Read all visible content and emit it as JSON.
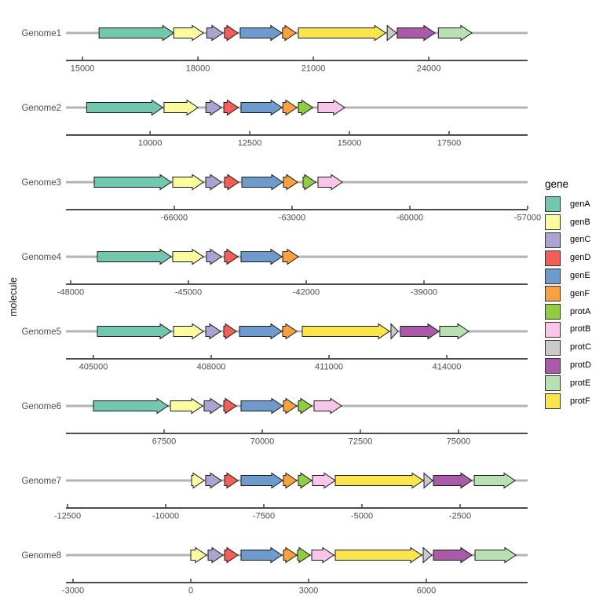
{
  "chart_data": {
    "type": "gene-arrow-map",
    "title": "",
    "xlabel": "",
    "ylabel": "molecule",
    "grid": false,
    "legend": {
      "title": "gene",
      "position": "right",
      "items": [
        {
          "label": "genA",
          "color": "#74C7AF"
        },
        {
          "label": "genB",
          "color": "#FBFB9F"
        },
        {
          "label": "genC",
          "color": "#ACA4D0"
        },
        {
          "label": "genD",
          "color": "#F15F58"
        },
        {
          "label": "genE",
          "color": "#6E9BCB"
        },
        {
          "label": "genF",
          "color": "#F9A13E"
        },
        {
          "label": "protA",
          "color": "#8FCE42"
        },
        {
          "label": "protB",
          "color": "#F9C5E8"
        },
        {
          "label": "protC",
          "color": "#C9C9C9"
        },
        {
          "label": "protD",
          "color": "#A95BA8"
        },
        {
          "label": "protE",
          "color": "#B8E0B2"
        },
        {
          "label": "protF",
          "color": "#FBE54D"
        }
      ]
    },
    "style": {
      "track_line_color": "#B3B3B3",
      "axis_color": "#333333",
      "tick_text_color": "#4D4D4D",
      "arrow_outline_color": "#1A1A1A",
      "background": "#FFFFFF"
    },
    "genomes": [
      {
        "name": "Genome1",
        "xlim": [
          14570,
          26570
        ],
        "ticks": [
          15000,
          18000,
          21000,
          24000
        ],
        "genes": [
          {
            "gene": "genA",
            "start": 15430,
            "end": 17370
          },
          {
            "gene": "genB",
            "start": 17370,
            "end": 18140
          },
          {
            "gene": "genC",
            "start": 18230,
            "end": 18650
          },
          {
            "gene": "genD",
            "start": 18690,
            "end": 19040
          },
          {
            "gene": "genE",
            "start": 19100,
            "end": 20180
          },
          {
            "gene": "genF",
            "start": 20200,
            "end": 20550
          },
          {
            "gene": "protF",
            "start": 20610,
            "end": 22880
          },
          {
            "gene": "protC",
            "start": 22920,
            "end": 23160
          },
          {
            "gene": "protD",
            "start": 23180,
            "end": 24160
          },
          {
            "gene": "protE",
            "start": 24250,
            "end": 25120
          }
        ]
      },
      {
        "name": "Genome2",
        "xlim": [
          7890,
          19470
        ],
        "ticks": [
          10000,
          12500,
          15000,
          17500
        ],
        "genes": [
          {
            "gene": "genA",
            "start": 8410,
            "end": 10320
          },
          {
            "gene": "genB",
            "start": 10350,
            "end": 11200
          },
          {
            "gene": "genC",
            "start": 11400,
            "end": 11790
          },
          {
            "gene": "genD",
            "start": 11850,
            "end": 12210
          },
          {
            "gene": "genE",
            "start": 12280,
            "end": 13310
          },
          {
            "gene": "genF",
            "start": 13330,
            "end": 13680
          },
          {
            "gene": "protA",
            "start": 13720,
            "end": 14080
          },
          {
            "gene": "protB",
            "start": 14210,
            "end": 14880
          }
        ]
      },
      {
        "name": "Genome3",
        "xlim": [
          -68760,
          -57000
        ],
        "ticks": [
          -66000,
          -63000,
          -60000,
          -57000
        ],
        "genes": [
          {
            "gene": "genA",
            "start": -68040,
            "end": -66080
          },
          {
            "gene": "genB",
            "start": -66040,
            "end": -65260
          },
          {
            "gene": "genC",
            "start": -65200,
            "end": -64800
          },
          {
            "gene": "genD",
            "start": -64720,
            "end": -64360
          },
          {
            "gene": "genE",
            "start": -64280,
            "end": -63240
          },
          {
            "gene": "genF",
            "start": -63220,
            "end": -62860
          },
          {
            "gene": "protA",
            "start": -62720,
            "end": -62400
          },
          {
            "gene": "protB",
            "start": -62340,
            "end": -61720
          }
        ]
      },
      {
        "name": "Genome4",
        "xlim": [
          -48120,
          -36360
        ],
        "ticks": [
          -48000,
          -45000,
          -42000,
          -39000
        ],
        "genes": [
          {
            "gene": "genA",
            "start": -47320,
            "end": -45440
          },
          {
            "gene": "genB",
            "start": -45400,
            "end": -44620
          },
          {
            "gene": "genC",
            "start": -44540,
            "end": -44160
          },
          {
            "gene": "genD",
            "start": -44080,
            "end": -43740
          },
          {
            "gene": "genE",
            "start": -43660,
            "end": -42620
          },
          {
            "gene": "genF",
            "start": -42600,
            "end": -42200
          }
        ]
      },
      {
        "name": "Genome5",
        "xlim": [
          404300,
          416060
        ],
        "ticks": [
          405000,
          408000,
          411000,
          414000
        ],
        "genes": [
          {
            "gene": "genA",
            "start": 405100,
            "end": 406980
          },
          {
            "gene": "genB",
            "start": 407040,
            "end": 407800
          },
          {
            "gene": "genC",
            "start": 407860,
            "end": 408240
          },
          {
            "gene": "genD",
            "start": 408320,
            "end": 408640
          },
          {
            "gene": "genE",
            "start": 408720,
            "end": 409800
          },
          {
            "gene": "genF",
            "start": 409820,
            "end": 410180
          },
          {
            "gene": "protF",
            "start": 410320,
            "end": 412540
          },
          {
            "gene": "protC",
            "start": 412580,
            "end": 412760
          },
          {
            "gene": "protD",
            "start": 412820,
            "end": 413800
          },
          {
            "gene": "protE",
            "start": 413820,
            "end": 414560
          }
        ]
      },
      {
        "name": "Genome6",
        "xlim": [
          65000,
          76760
        ],
        "ticks": [
          67500,
          70000,
          72500,
          75000
        ],
        "genes": [
          {
            "gene": "genA",
            "start": 65700,
            "end": 67600
          },
          {
            "gene": "genB",
            "start": 67660,
            "end": 68480
          },
          {
            "gene": "genC",
            "start": 68520,
            "end": 68960
          },
          {
            "gene": "genD",
            "start": 69020,
            "end": 69340
          },
          {
            "gene": "genE",
            "start": 69460,
            "end": 70520
          },
          {
            "gene": "genF",
            "start": 70540,
            "end": 70880
          },
          {
            "gene": "protA",
            "start": 70920,
            "end": 71260
          },
          {
            "gene": "protB",
            "start": 71320,
            "end": 72020
          }
        ]
      },
      {
        "name": "Genome7",
        "xlim": [
          -12540,
          -780
        ],
        "ticks": [
          -12500,
          -10000,
          -7500,
          -5000,
          -2500
        ],
        "genes": [
          {
            "gene": "genB",
            "start": -9340,
            "end": -9020
          },
          {
            "gene": "genC",
            "start": -8980,
            "end": -8580
          },
          {
            "gene": "genD",
            "start": -8500,
            "end": -8160
          },
          {
            "gene": "genE",
            "start": -8080,
            "end": -7020
          },
          {
            "gene": "genF",
            "start": -7000,
            "end": -6660
          },
          {
            "gene": "protA",
            "start": -6620,
            "end": -6280
          },
          {
            "gene": "protB",
            "start": -6260,
            "end": -5680
          },
          {
            "gene": "protF",
            "start": -5680,
            "end": -3440
          },
          {
            "gene": "protC",
            "start": -3420,
            "end": -3200
          },
          {
            "gene": "protD",
            "start": -3180,
            "end": -2200
          },
          {
            "gene": "protE",
            "start": -2140,
            "end": -1100
          }
        ]
      },
      {
        "name": "Genome8",
        "xlim": [
          -3180,
          8580
        ],
        "ticks": [
          -3000,
          0,
          3000,
          6000
        ],
        "genes": [
          {
            "gene": "genB",
            "start": 0,
            "end": 400
          },
          {
            "gene": "genC",
            "start": 440,
            "end": 820
          },
          {
            "gene": "genD",
            "start": 860,
            "end": 1200
          },
          {
            "gene": "genE",
            "start": 1280,
            "end": 2320
          },
          {
            "gene": "genF",
            "start": 2360,
            "end": 2700
          },
          {
            "gene": "protA",
            "start": 2720,
            "end": 3040
          },
          {
            "gene": "protB",
            "start": 3080,
            "end": 3640
          },
          {
            "gene": "protF",
            "start": 3680,
            "end": 5880
          },
          {
            "gene": "protC",
            "start": 5920,
            "end": 6140
          },
          {
            "gene": "protD",
            "start": 6180,
            "end": 7160
          },
          {
            "gene": "protE",
            "start": 7240,
            "end": 8280
          }
        ]
      }
    ]
  }
}
